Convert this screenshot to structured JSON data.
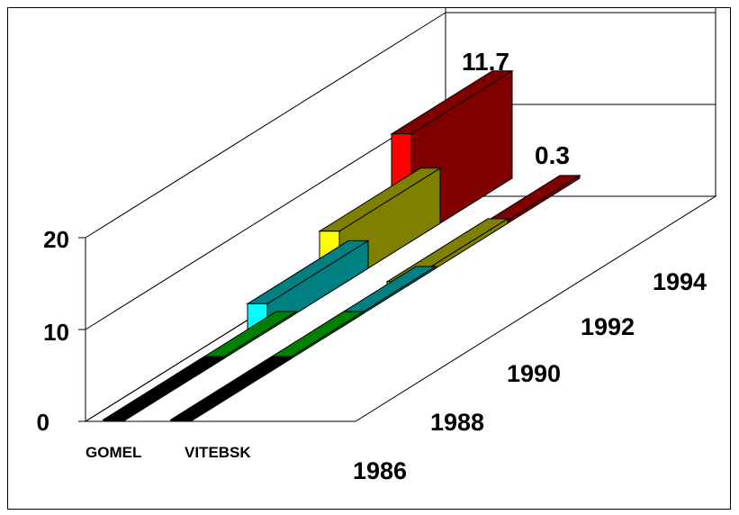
{
  "chart_data": {
    "type": "bar",
    "title": "",
    "xlabel": "",
    "ylabel": "",
    "ylim": [
      0,
      20
    ],
    "yticks": [
      0,
      10,
      20
    ],
    "categories": [
      "GOMEL",
      "VITEBSK"
    ],
    "depth_labels": [
      "1986",
      "1988",
      "1990",
      "1992",
      "1994"
    ],
    "series": [
      {
        "name": "1986",
        "values": [
          0,
          0
        ]
      },
      {
        "name": "1988",
        "values": [
          0.1,
          0.1
        ]
      },
      {
        "name": "1990",
        "values": [
          3,
          0.1
        ]
      },
      {
        "name": "1992",
        "values": [
          6,
          0.5
        ]
      },
      {
        "name": "1994",
        "values": [
          11.7,
          0.3
        ]
      }
    ],
    "data_labels": [
      "11.7",
      "0.3"
    ],
    "colors": {
      "1986": {
        "front": "#000000",
        "side": "#000000"
      },
      "1988": {
        "front": "#008000",
        "side": "#008000"
      },
      "1990": {
        "front": "#00ffff",
        "side": "#008080"
      },
      "1992": {
        "front": "#ffff00",
        "side": "#808000"
      },
      "1994": {
        "front": "#ff0000",
        "side": "#800000"
      }
    },
    "grid": true,
    "legend": "none"
  }
}
